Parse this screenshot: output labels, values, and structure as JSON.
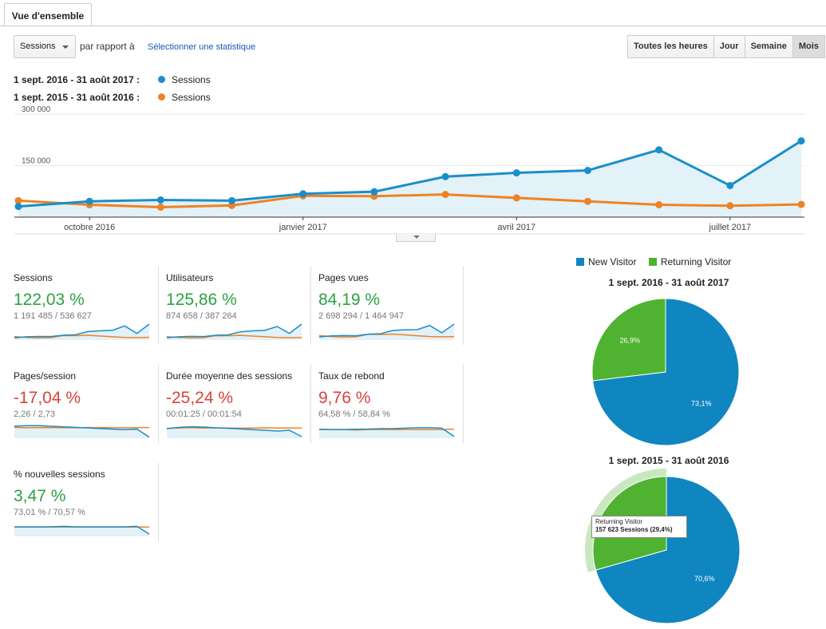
{
  "tab": {
    "label": "Vue d'ensemble"
  },
  "toolbar": {
    "metric": "Sessions",
    "versus": "par rapport à",
    "select_stat": "Sélectionner une statistique",
    "ranges": [
      {
        "label": "Toutes les heures",
        "active": false
      },
      {
        "label": "Jour",
        "active": false
      },
      {
        "label": "Semaine",
        "active": false
      },
      {
        "label": "Mois",
        "active": true
      }
    ]
  },
  "colors": {
    "current": "#1a8ec8",
    "previous": "#ee8224",
    "new": "#0f86c0",
    "returning": "#4fb231",
    "green": "#2aa243",
    "red": "#d9433b"
  },
  "legend": [
    {
      "period": "1 sept. 2016 - 31 août 2017 :",
      "series": "Sessions"
    },
    {
      "period": "1 sept. 2015 - 31 août 2016 :",
      "series": "Sessions"
    }
  ],
  "chart_data": [
    {
      "type": "line",
      "x": [
        "sept. 2016",
        "oct. 2016",
        "nov. 2016",
        "déc. 2016",
        "janv. 2017",
        "févr. 2017",
        "mars 2017",
        "avr. 2017",
        "mai 2017",
        "juin 2017",
        "juil. 2017",
        "août 2017"
      ],
      "x_tick_labels": [
        {
          "index": 1,
          "label": "octobre 2016"
        },
        {
          "index": 4,
          "label": "janvier 2017"
        },
        {
          "index": 7,
          "label": "avril 2017"
        },
        {
          "index": 10,
          "label": "juillet 2017"
        }
      ],
      "y_tick_labels": [
        {
          "value": 150000,
          "label": "150 000"
        },
        {
          "value": 300000,
          "label": "300 000"
        }
      ],
      "ylim": [
        0,
        300000
      ],
      "grid": true,
      "series": [
        {
          "name": "Sessions",
          "values": [
            31000,
            46000,
            50000,
            48000,
            68000,
            74000,
            118000,
            129000,
            136000,
            196000,
            92000,
            222000
          ]
        },
        {
          "name": "Sessions",
          "values": [
            48000,
            36000,
            29000,
            34000,
            62000,
            61000,
            66000,
            56000,
            46000,
            36000,
            33000,
            37000
          ]
        }
      ]
    },
    {
      "type": "pie",
      "title": "1 sept. 2016 - 31 août 2017",
      "legend": [
        "New Visitor",
        "Returning Visitor"
      ],
      "slices": [
        {
          "name": "New Visitor",
          "value": 73.1,
          "label": "73,1%"
        },
        {
          "name": "Returning Visitor",
          "value": 26.9,
          "label": "26,9%"
        }
      ]
    },
    {
      "type": "pie",
      "title": "1 sept. 2015 - 31 août 2016",
      "slices": [
        {
          "name": "New Visitor",
          "value": 70.6,
          "label": "70,6%"
        },
        {
          "name": "Returning Visitor",
          "value": 29.4,
          "label": ""
        }
      ],
      "tooltip": {
        "title": "Returning Visitor",
        "text": "157 623 Sessions (29,4%)"
      }
    }
  ],
  "tiles": [
    {
      "name": "Sessions",
      "pct": "122,03 %",
      "trend": "up",
      "values": "1 191 485 / 536 627",
      "spark_current": [
        31,
        46,
        50,
        48,
        68,
        74,
        118,
        129,
        136,
        196,
        92,
        222
      ],
      "spark_previous": [
        48,
        36,
        29,
        34,
        62,
        61,
        66,
        56,
        46,
        36,
        33,
        37
      ],
      "spark_range": [
        0,
        222
      ]
    },
    {
      "name": "Utilisateurs",
      "pct": "125,86 %",
      "trend": "up",
      "values": "874 658 / 387 264",
      "spark_current": [
        24,
        34,
        38,
        36,
        50,
        54,
        85,
        95,
        100,
        140,
        68,
        165
      ],
      "spark_previous": [
        35,
        27,
        22,
        25,
        45,
        44,
        48,
        41,
        34,
        27,
        24,
        27
      ],
      "spark_range": [
        0,
        165
      ]
    },
    {
      "name": "Pages vues",
      "pct": "84,19 %",
      "trend": "up",
      "values": "2 698 294 / 1 464 947",
      "spark_current": [
        90,
        120,
        130,
        125,
        170,
        180,
        275,
        295,
        300,
        420,
        210,
        460
      ],
      "spark_previous": [
        130,
        100,
        85,
        95,
        165,
        160,
        170,
        150,
        125,
        100,
        92,
        100
      ],
      "spark_range": [
        0,
        460
      ]
    },
    {
      "name": "Pages/session",
      "pct": "-17,04 %",
      "trend": "down",
      "values": "2,26 / 2,73",
      "spark_current": [
        2.85,
        2.9,
        2.9,
        2.85,
        2.8,
        2.75,
        2.7,
        2.65,
        2.6,
        2.55,
        2.6,
        1.9
      ],
      "spark_previous": [
        2.75,
        2.72,
        2.74,
        2.73,
        2.73,
        2.72,
        2.74,
        2.73,
        2.72,
        2.72,
        2.73,
        2.74
      ],
      "spark_range": [
        1.8,
        3.2
      ]
    },
    {
      "name": "Durée moyenne des sessions",
      "pct": "-25,24 %",
      "trend": "down",
      "values": "00:01:25 / 00:01:54",
      "spark_current": [
        110,
        118,
        122,
        120,
        115,
        112,
        108,
        104,
        100,
        95,
        100,
        60
      ],
      "spark_previous": [
        112,
        114,
        116,
        114,
        115,
        114,
        113,
        114,
        115,
        114,
        114,
        113
      ],
      "spark_range": [
        50,
        150
      ]
    },
    {
      "name": "Taux de rebond",
      "pct": "9,76 %",
      "trend": "down",
      "values": "64,58 % / 58,84 %",
      "spark_current": [
        60,
        59,
        59,
        60,
        60,
        61,
        61,
        62,
        63,
        63,
        62,
        44
      ],
      "spark_previous": [
        59,
        59,
        59,
        58,
        59,
        59,
        59,
        59,
        59,
        59,
        59,
        60
      ],
      "spark_range": [
        40,
        75
      ]
    },
    {
      "name": "% nouvelles sessions",
      "pct": "3,47 %",
      "trend": "up",
      "values": "73,01 % / 70,57 %",
      "spark_current": [
        71,
        71,
        71,
        71,
        72,
        71,
        71,
        71,
        71,
        71,
        72,
        55
      ],
      "spark_previous": [
        70.5,
        70.5,
        70.6,
        70.6,
        70.5,
        70.5,
        70.6,
        70.5,
        70.6,
        70.5,
        70.5,
        70.6
      ],
      "spark_range": [
        50,
        85
      ]
    }
  ]
}
